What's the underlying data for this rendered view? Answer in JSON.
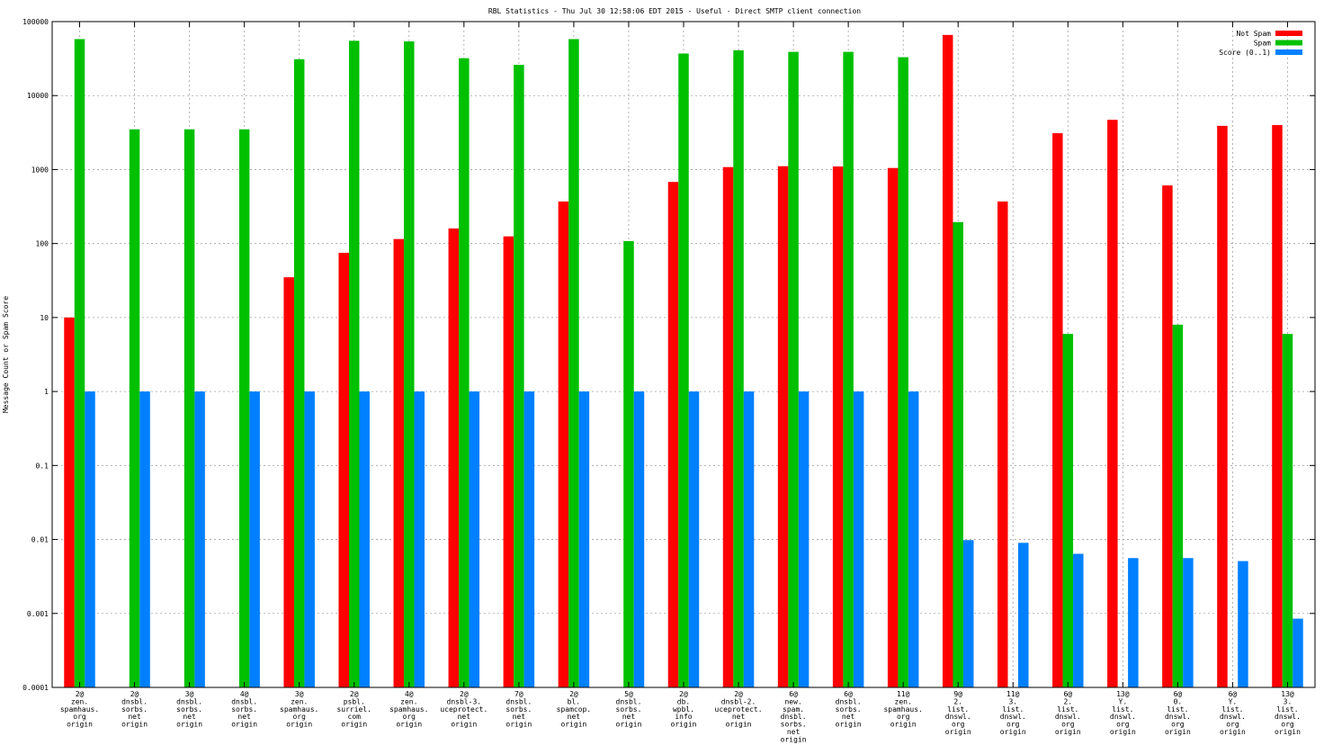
{
  "chart_data": {
    "type": "bar",
    "title": "RBL Statistics - Thu Jul 30 12:58:06 EDT 2015 - Useful - Direct SMTP client connection",
    "ylabel": "Message Count or Spam Score",
    "xlabel": "",
    "yscale": "log",
    "ylim": [
      0.0001,
      100000
    ],
    "yticks": [
      "0.0001",
      "0.001",
      "0.01",
      "0.1",
      "1",
      "10",
      "100",
      "1000",
      "10000",
      "100000"
    ],
    "grid": true,
    "legend_position": "top-right",
    "categories": [
      [
        "2@",
        "zen.",
        "spamhaus.",
        "org",
        "origin"
      ],
      [
        "2@",
        "dnsbl.",
        "sorbs.",
        "net",
        "origin"
      ],
      [
        "3@",
        "dnsbl.",
        "sorbs.",
        "net",
        "origin"
      ],
      [
        "4@",
        "dnsbl.",
        "sorbs.",
        "net",
        "origin"
      ],
      [
        "3@",
        "zen.",
        "spamhaus.",
        "org",
        "origin"
      ],
      [
        "2@",
        "psbl.",
        "surriel.",
        "com",
        "origin"
      ],
      [
        "4@",
        "zen.",
        "spamhaus.",
        "org",
        "origin"
      ],
      [
        "2@",
        "dnsbl-3.",
        "uceprotect.",
        "net",
        "origin"
      ],
      [
        "7@",
        "dnsbl.",
        "sorbs.",
        "net",
        "origin"
      ],
      [
        "2@",
        "bl.",
        "spamcop.",
        "net",
        "origin"
      ],
      [
        "5@",
        "dnsbl.",
        "sorbs.",
        "net",
        "origin"
      ],
      [
        "2@",
        "db.",
        "wpbl.",
        "info",
        "origin"
      ],
      [
        "2@",
        "dnsbl-2.",
        "uceprotect.",
        "net",
        "origin"
      ],
      [
        "6@",
        "new.",
        "spam.",
        "dnsbl.",
        "sorbs.",
        "net",
        "origin"
      ],
      [
        "6@",
        "dnsbl.",
        "sorbs.",
        "net",
        "origin"
      ],
      [
        "11@",
        "zen.",
        "spamhaus.",
        "org",
        "origin"
      ],
      [
        "9@",
        "2.",
        "list.",
        "dnswl.",
        "org",
        "origin"
      ],
      [
        "11@",
        "3.",
        "list.",
        "dnswl.",
        "org",
        "origin"
      ],
      [
        "6@",
        "2.",
        "list.",
        "dnswl.",
        "org",
        "origin"
      ],
      [
        "13@",
        "Y.",
        "list.",
        "dnswl.",
        "org",
        "origin"
      ],
      [
        "6@",
        "0.",
        "list.",
        "dnswl.",
        "org",
        "origin"
      ],
      [
        "6@",
        "Y.",
        "list.",
        "dnswl.",
        "org",
        "origin"
      ],
      [
        "13@",
        "3.",
        "list.",
        "dnswl.",
        "org",
        "origin"
      ]
    ],
    "series": [
      {
        "name": "Not Spam",
        "color": "#ff0000",
        "values": [
          10,
          null,
          null,
          null,
          35,
          75,
          115,
          160,
          125,
          370,
          null,
          680,
          1080,
          1110,
          1100,
          1050,
          66000,
          370,
          3100,
          4700,
          610,
          3900,
          4000
        ]
      },
      {
        "name": "Spam",
        "color": "#00c000",
        "values": [
          58000,
          3500,
          3500,
          3500,
          31000,
          55000,
          54000,
          32000,
          26000,
          58000,
          108,
          37000,
          41000,
          39000,
          39000,
          33000,
          195,
          null,
          6,
          null,
          8,
          null,
          6
        ]
      },
      {
        "name": "Score (0..1)",
        "color": "#0080ff",
        "values": [
          1,
          1,
          1,
          1,
          1,
          1,
          1,
          1,
          1,
          1,
          1,
          1,
          1,
          1,
          1,
          1,
          0.0098,
          0.009,
          0.0064,
          0.0056,
          0.0056,
          0.0051,
          0.00085
        ]
      }
    ]
  }
}
